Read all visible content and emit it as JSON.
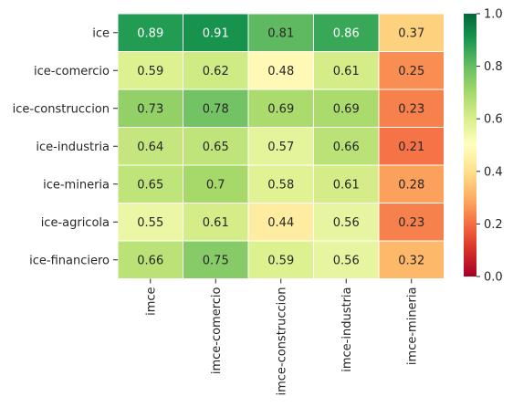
{
  "chart_data": {
    "type": "heatmap",
    "rows": [
      "ice",
      "ice-comercio",
      "ice-construccion",
      "ice-industria",
      "ice-mineria",
      "ice-agricola",
      "ice-financiero"
    ],
    "columns": [
      "imce",
      "imce-comercio",
      "imce-construccion",
      "imce-industria",
      "imce-mineria"
    ],
    "values": [
      [
        0.89,
        0.91,
        0.81,
        0.86,
        0.37
      ],
      [
        0.59,
        0.62,
        0.48,
        0.61,
        0.25
      ],
      [
        0.73,
        0.78,
        0.69,
        0.69,
        0.23
      ],
      [
        0.64,
        0.65,
        0.57,
        0.66,
        0.21
      ],
      [
        0.65,
        0.7,
        0.58,
        0.61,
        0.28
      ],
      [
        0.55,
        0.61,
        0.44,
        0.56,
        0.23
      ],
      [
        0.66,
        0.75,
        0.59,
        0.56,
        0.32
      ]
    ],
    "cell_labels": [
      [
        "0.89",
        "0.91",
        "0.81",
        "0.86",
        "0.37"
      ],
      [
        "0.59",
        "0.62",
        "0.48",
        "0.61",
        "0.25"
      ],
      [
        "0.73",
        "0.78",
        "0.69",
        "0.69",
        "0.23"
      ],
      [
        "0.64",
        "0.65",
        "0.57",
        "0.66",
        "0.21"
      ],
      [
        "0.65",
        "0.7",
        "0.58",
        "0.61",
        "0.28"
      ],
      [
        "0.55",
        "0.61",
        "0.44",
        "0.56",
        "0.23"
      ],
      [
        "0.66",
        "0.75",
        "0.59",
        "0.56",
        "0.32"
      ]
    ],
    "vmin": 0.0,
    "vmax": 1.0,
    "colormap": "RdYlGn",
    "colorbar_ticks": [
      "0.0",
      "0.2",
      "0.4",
      "0.6",
      "0.8",
      "1.0"
    ],
    "colorbar_tick_values": [
      0.0,
      0.2,
      0.4,
      0.6,
      0.8,
      1.0
    ],
    "title": "",
    "xlabel": "",
    "ylabel": ""
  }
}
